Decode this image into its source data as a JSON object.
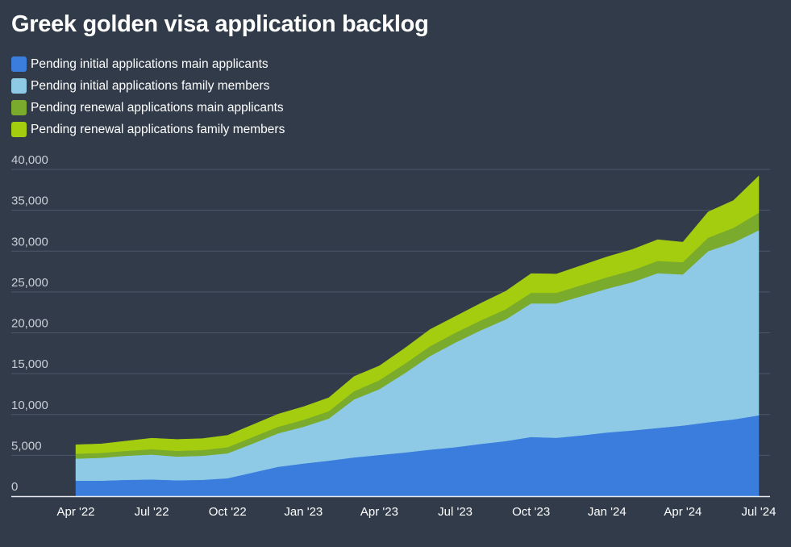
{
  "chart_data": {
    "type": "area",
    "stacked": true,
    "title": "Greek golden visa application backlog",
    "xlabel": "",
    "ylabel": "",
    "ylim": [
      0,
      40000
    ],
    "y_ticks": [
      0,
      5000,
      10000,
      15000,
      20000,
      25000,
      30000,
      35000,
      40000
    ],
    "y_tick_labels": [
      "0",
      "5,000",
      "10,000",
      "15,000",
      "20,000",
      "25,000",
      "30,000",
      "35,000",
      "40,000"
    ],
    "x_tick_labels": [
      "Apr '22",
      "Jul '22",
      "Oct '22",
      "Jan '23",
      "Apr '23",
      "Jul '23",
      "Oct '23",
      "Jan '24",
      "Apr '24",
      "Jul '24"
    ],
    "grid": true,
    "legend_position": "top-left",
    "x": [
      "2022-04",
      "2022-05",
      "2022-06",
      "2022-07",
      "2022-08",
      "2022-09",
      "2022-10",
      "2022-11",
      "2022-12",
      "2023-01",
      "2023-02",
      "2023-03",
      "2023-04",
      "2023-05",
      "2023-06",
      "2023-07",
      "2023-08",
      "2023-09",
      "2023-10",
      "2023-11",
      "2023-12",
      "2024-01",
      "2024-02",
      "2024-03",
      "2024-04",
      "2024-05",
      "2024-06",
      "2024-07"
    ],
    "series": [
      {
        "name": "Pending initial applications main applicants",
        "color": "#3b7ddd",
        "values": [
          1900,
          1900,
          2000,
          2050,
          1950,
          2000,
          2200,
          2900,
          3600,
          4000,
          4350,
          4750,
          5050,
          5350,
          5700,
          6000,
          6400,
          6750,
          7250,
          7150,
          7450,
          7800,
          8050,
          8350,
          8650,
          9050,
          9400,
          9900
        ]
      },
      {
        "name": "Pending initial applications family members",
        "color": "#8ecae6",
        "values": [
          2700,
          2800,
          2950,
          3050,
          2900,
          2950,
          3050,
          3550,
          4100,
          4500,
          5150,
          7100,
          8050,
          9700,
          11450,
          12800,
          13900,
          14900,
          16350,
          16450,
          17050,
          17600,
          18150,
          18950,
          18500,
          20950,
          21650,
          22650
        ]
      },
      {
        "name": "Pending renewal applications main applicants",
        "color": "#7aab2c",
        "values": [
          600,
          600,
          600,
          650,
          700,
          700,
          750,
          800,
          800,
          850,
          900,
          1000,
          1100,
          1150,
          1200,
          1200,
          1200,
          1250,
          1300,
          1300,
          1350,
          1400,
          1450,
          1500,
          1500,
          1650,
          1800,
          2150
        ]
      },
      {
        "name": "Pending renewal applications family members",
        "color": "#a4cd10",
        "values": [
          1100,
          1100,
          1200,
          1350,
          1400,
          1400,
          1450,
          1500,
          1550,
          1600,
          1650,
          1800,
          1750,
          1900,
          2050,
          2000,
          2100,
          2200,
          2350,
          2300,
          2400,
          2500,
          2550,
          2600,
          2450,
          3150,
          3350,
          4500
        ]
      }
    ]
  }
}
